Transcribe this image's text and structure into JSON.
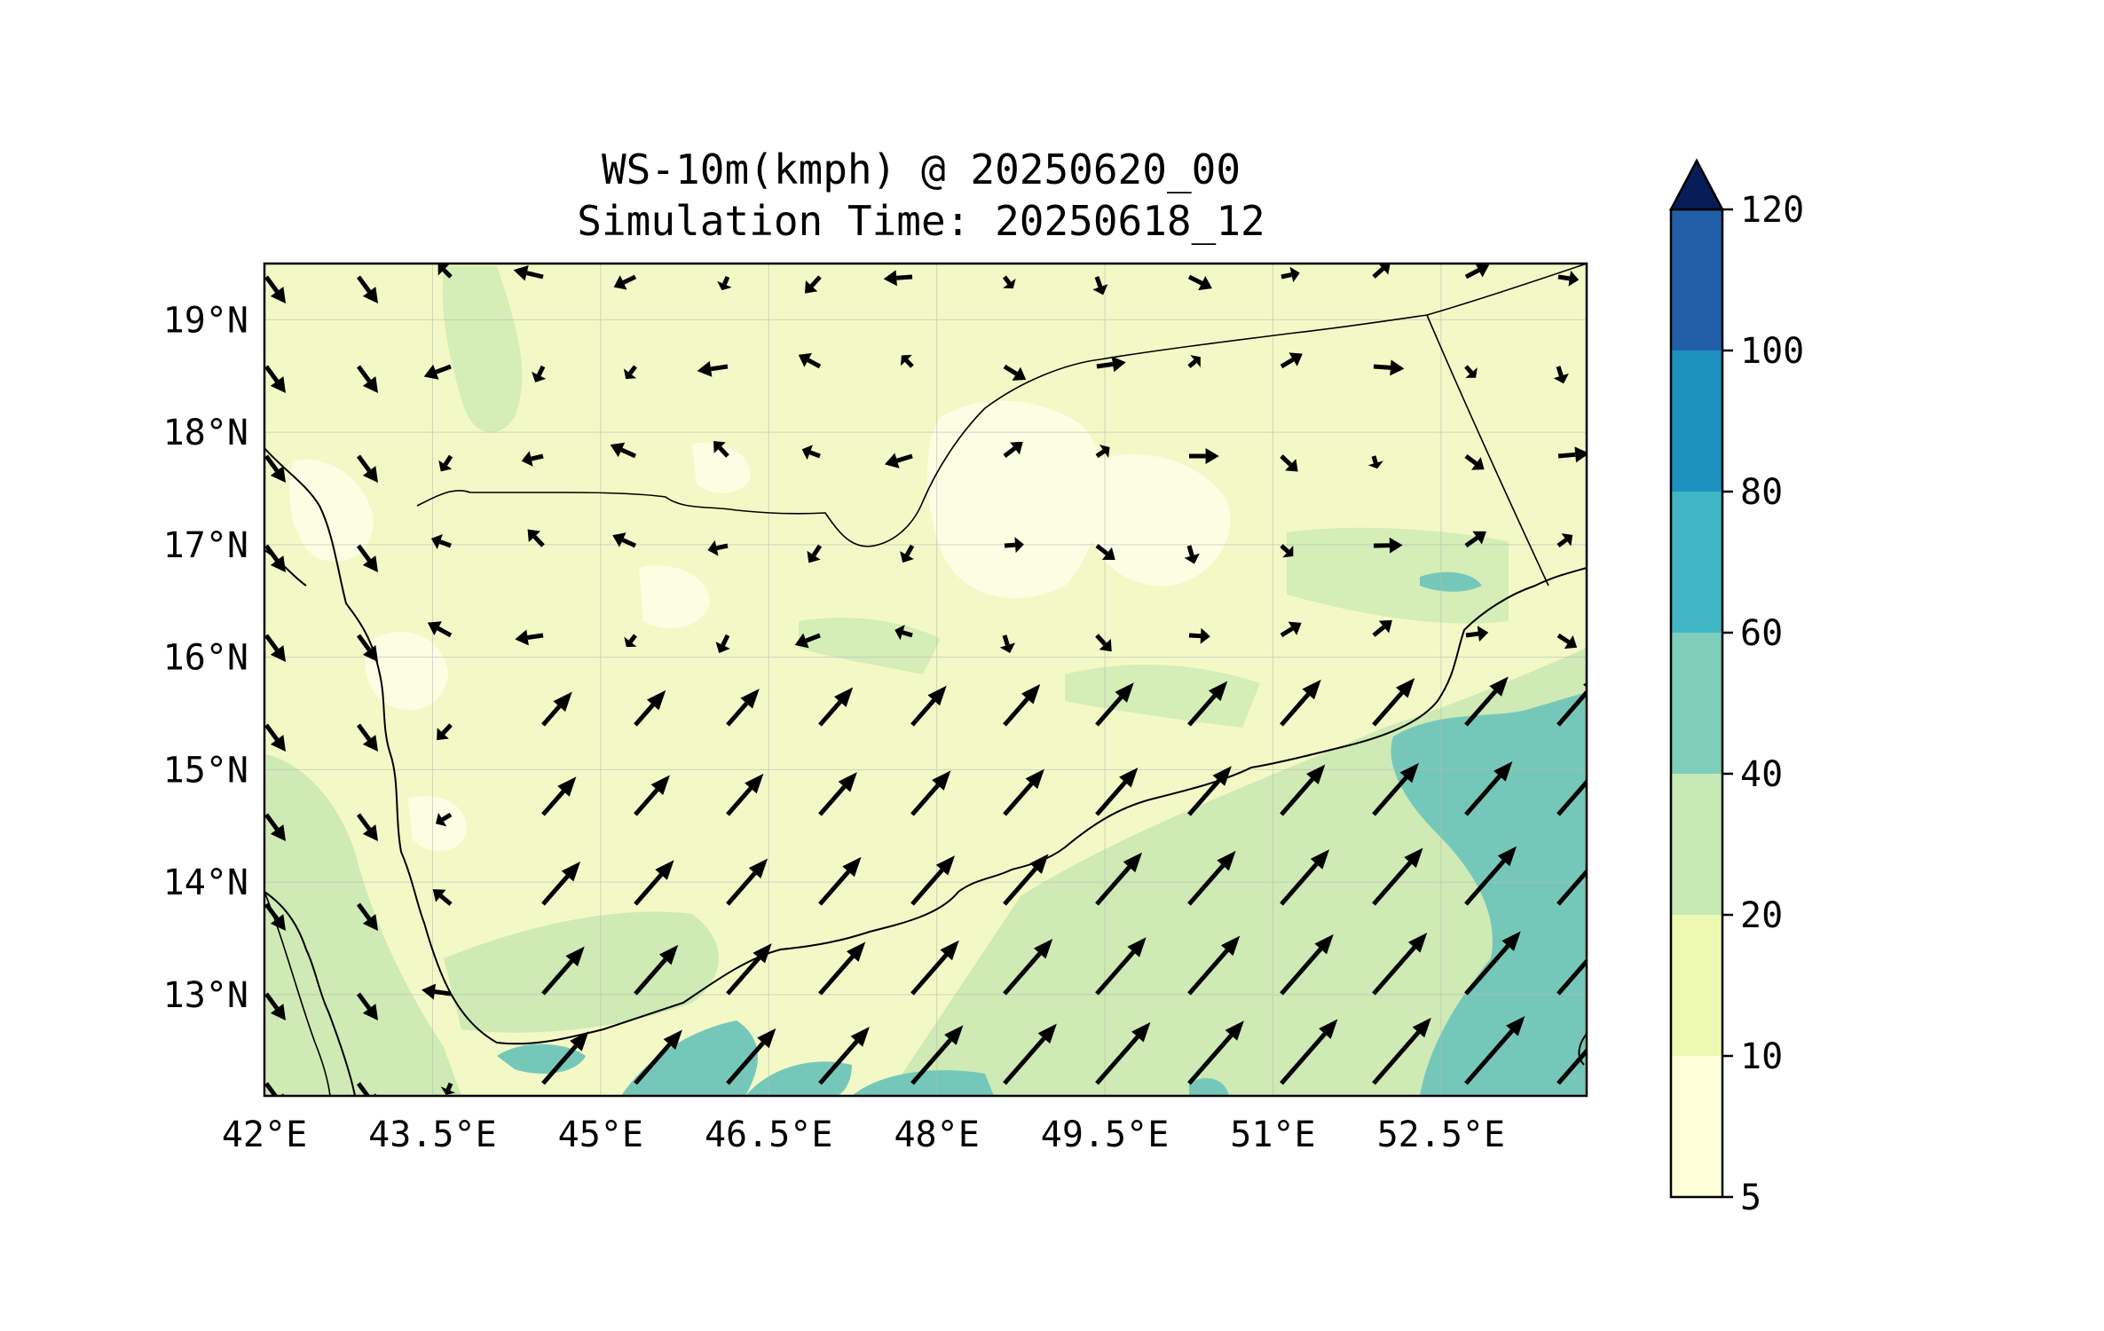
{
  "title": {
    "line1": "WS-10m(kmph) @ 20250620_00",
    "line2": "Simulation Time: 20250618_12"
  },
  "map": {
    "projection": "PlateCarree",
    "lon_range": [
      42.0,
      53.8
    ],
    "lat_range": [
      12.1,
      19.5
    ],
    "x_ticks": [
      {
        "value": 42.0,
        "label": "42°E"
      },
      {
        "value": 43.5,
        "label": "43.5°E"
      },
      {
        "value": 45.0,
        "label": "45°E"
      },
      {
        "value": 46.5,
        "label": "46.5°E"
      },
      {
        "value": 48.0,
        "label": "48°E"
      },
      {
        "value": 49.5,
        "label": "49.5°E"
      },
      {
        "value": 51.0,
        "label": "51°E"
      },
      {
        "value": 52.5,
        "label": "52.5°E"
      }
    ],
    "y_ticks": [
      {
        "value": 13,
        "label": "13°N"
      },
      {
        "value": 14,
        "label": "14°N"
      },
      {
        "value": 15,
        "label": "15°N"
      },
      {
        "value": 16,
        "label": "16°N"
      },
      {
        "value": 17,
        "label": "17°N"
      },
      {
        "value": 18,
        "label": "18°N"
      },
      {
        "value": 19,
        "label": "19°N"
      }
    ],
    "gridlines": true,
    "features": [
      "coastlines",
      "country_borders",
      "wind_vectors"
    ]
  },
  "colorbar": {
    "levels": [
      5,
      10,
      20,
      40,
      60,
      80,
      100,
      120
    ],
    "labels": [
      "5",
      "10",
      "20",
      "40",
      "60",
      "80",
      "100",
      "120"
    ],
    "colors": [
      "#ffffd9",
      "#edf8b1",
      "#c7e9b4",
      "#7fcdbb",
      "#41b6c4",
      "#1d91c0",
      "#225ea8",
      "#0c2c84"
    ],
    "extend": "max",
    "extend_color": "#081d58",
    "orientation": "vertical"
  }
}
